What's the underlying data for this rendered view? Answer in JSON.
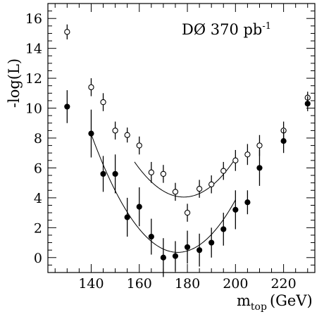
{
  "chart_data": {
    "type": "scatter",
    "title": "",
    "annotation": {
      "base": "DØ 370 pb",
      "sup": "-1"
    },
    "xlabel": {
      "base": "m",
      "sub": "top",
      "unit": "(GeV)"
    },
    "ylabel": "-log(L)",
    "xlim": [
      122,
      233
    ],
    "ylim": [
      -1,
      17
    ],
    "x_ticks": [
      140,
      160,
      180,
      200,
      220
    ],
    "y_ticks": [
      0,
      2,
      4,
      6,
      8,
      10,
      12,
      14,
      16
    ],
    "x_ticks_labels": [
      "140",
      "160",
      "180",
      "200",
      "220"
    ],
    "y_ticks_labels": [
      "0",
      "2",
      "4",
      "6",
      "8",
      "10",
      "12",
      "14",
      "16"
    ],
    "series": [
      {
        "marker": "open",
        "points": [
          {
            "x": 130,
            "y": 15.1,
            "err": 0.5
          },
          {
            "x": 140,
            "y": 11.4,
            "err": 0.6
          },
          {
            "x": 145,
            "y": 10.4,
            "err": 0.6
          },
          {
            "x": 150,
            "y": 8.5,
            "err": 0.6
          },
          {
            "x": 155,
            "y": 8.2,
            "err": 0.5
          },
          {
            "x": 160,
            "y": 7.5,
            "err": 0.6
          },
          {
            "x": 165,
            "y": 5.7,
            "err": 0.7
          },
          {
            "x": 170,
            "y": 5.6,
            "err": 0.6
          },
          {
            "x": 175,
            "y": 4.4,
            "err": 0.6
          },
          {
            "x": 180,
            "y": 3.0,
            "err": 0.6
          },
          {
            "x": 185,
            "y": 4.6,
            "err": 0.6
          },
          {
            "x": 190,
            "y": 4.9,
            "err": 0.6
          },
          {
            "x": 195,
            "y": 5.8,
            "err": 0.6
          },
          {
            "x": 200,
            "y": 6.5,
            "err": 0.7
          },
          {
            "x": 205,
            "y": 6.9,
            "err": 0.7
          },
          {
            "x": 210,
            "y": 7.5,
            "err": 0.7
          },
          {
            "x": 220,
            "y": 8.5,
            "err": 0.6
          },
          {
            "x": 230,
            "y": 10.7,
            "err": 0.4
          }
        ],
        "fit": {
          "type": "parabola",
          "x_min": 178.5,
          "y_min": 4.05,
          "k": 0.0056,
          "x_range": [
            158,
            200
          ]
        }
      },
      {
        "marker": "filled",
        "points": [
          {
            "x": 130,
            "y": 10.1,
            "err": 1.1
          },
          {
            "x": 140,
            "y": 8.3,
            "err": 1.6
          },
          {
            "x": 145,
            "y": 5.6,
            "err": 1.2
          },
          {
            "x": 150,
            "y": 5.6,
            "err": 1.3
          },
          {
            "x": 155,
            "y": 2.7,
            "err": 1.3
          },
          {
            "x": 160,
            "y": 3.4,
            "err": 1.3
          },
          {
            "x": 165,
            "y": 1.4,
            "err": 1.2
          },
          {
            "x": 170,
            "y": 0.0,
            "err": 1.3
          },
          {
            "x": 175,
            "y": 0.1,
            "err": 1.0
          },
          {
            "x": 180,
            "y": 0.7,
            "err": 1.1
          },
          {
            "x": 185,
            "y": 0.5,
            "err": 1.1
          },
          {
            "x": 190,
            "y": 1.0,
            "err": 1.0
          },
          {
            "x": 195,
            "y": 1.9,
            "err": 1.1
          },
          {
            "x": 200,
            "y": 3.2,
            "err": 1.3
          },
          {
            "x": 205,
            "y": 3.7,
            "err": 0.8
          },
          {
            "x": 210,
            "y": 6.0,
            "err": 1.2
          },
          {
            "x": 220,
            "y": 7.8,
            "err": 0.8
          },
          {
            "x": 230,
            "y": 10.3,
            "err": 0.5
          }
        ],
        "fit": {
          "type": "parabola",
          "x_min": 176,
          "y_min": 0.35,
          "k": 0.0061,
          "x_range": [
            140,
            200
          ]
        }
      }
    ]
  }
}
